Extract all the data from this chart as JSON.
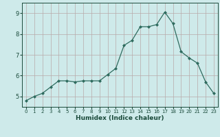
{
  "x": [
    0,
    1,
    2,
    3,
    4,
    5,
    6,
    7,
    8,
    9,
    10,
    11,
    12,
    13,
    14,
    15,
    16,
    17,
    18,
    19,
    20,
    21,
    22,
    23
  ],
  "y": [
    4.8,
    5.0,
    5.15,
    5.45,
    5.75,
    5.75,
    5.7,
    5.75,
    5.75,
    5.75,
    6.05,
    6.35,
    7.45,
    7.7,
    8.35,
    8.35,
    8.45,
    9.05,
    8.5,
    7.15,
    6.85,
    6.6,
    5.7,
    5.15
  ],
  "line_color": "#2e6b5e",
  "marker": "D",
  "marker_size": 2,
  "bg_color": "#ceeaea",
  "grid_color": "#b8a8a8",
  "xlabel": "Humidex (Indice chaleur)",
  "xlabel_color": "#1a4a3a",
  "tick_color": "#1a4a3a",
  "ylim": [
    4.5,
    9.5
  ],
  "xlim": [
    -0.5,
    23.5
  ],
  "yticks": [
    5,
    6,
    7,
    8,
    9
  ],
  "xticks": [
    0,
    1,
    2,
    3,
    4,
    5,
    6,
    7,
    8,
    9,
    10,
    11,
    12,
    13,
    14,
    15,
    16,
    17,
    18,
    19,
    20,
    21,
    22,
    23
  ]
}
